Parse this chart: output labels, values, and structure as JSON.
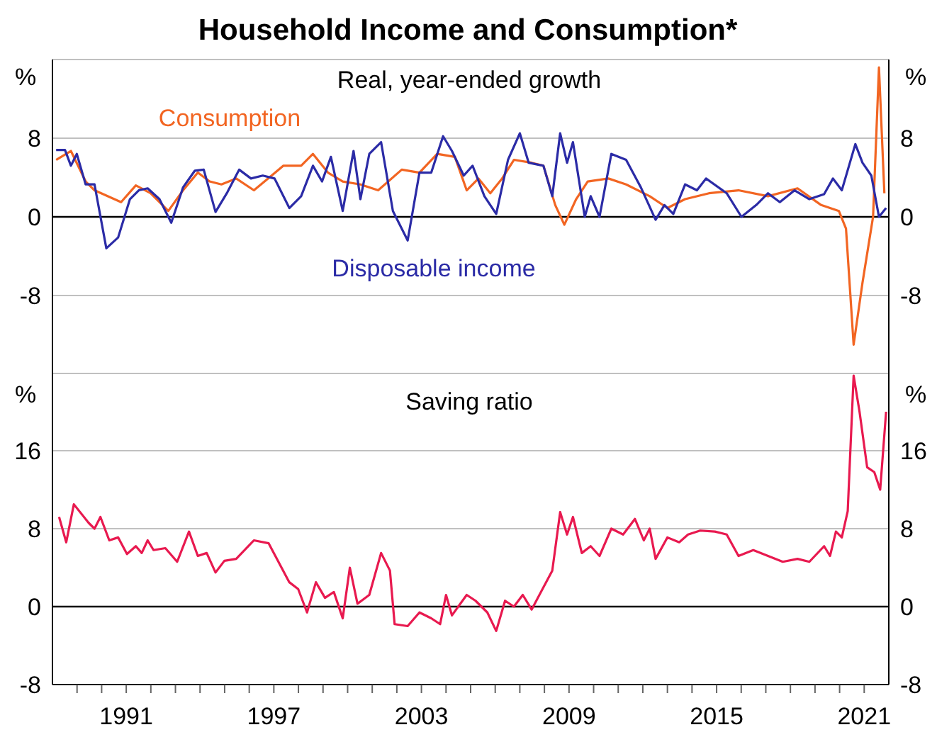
{
  "chart_data": [
    {
      "type": "line",
      "title": "Household Income and Consumption*",
      "subtitle": "Real, year-ended growth",
      "ylabel": "%",
      "y2label": "%",
      "xlim": [
        1988,
        2022
      ],
      "ylim": [
        -16,
        16
      ],
      "yticks": [
        -8,
        0,
        8
      ],
      "y2lim": [
        -16,
        16
      ],
      "y2ticks": [
        -8,
        0,
        8
      ],
      "tick_labels": "y",
      "grid": "y",
      "legend": false,
      "ref_lines": [
        {
          "axis": "y",
          "value": 0,
          "color": "#000000"
        }
      ],
      "series": [
        {
          "name": "Consumption",
          "color": "#f26522",
          "x": [
            1988.15,
            1988.75,
            1989.35,
            1989.71,
            1990.79,
            1991.39,
            1991.99,
            1992.71,
            1993.31,
            1993.91,
            1994.39,
            1994.87,
            1995.47,
            1996.19,
            1996.91,
            1997.39,
            1998.11,
            1998.59,
            1999.2,
            1999.8,
            2000.52,
            2001.24,
            2002.2,
            2002.92,
            2003.64,
            2004.36,
            2004.84,
            2005.32,
            2005.8,
            2006.28,
            2006.76,
            2007.48,
            2007.96,
            2008.44,
            2008.81,
            2009.29,
            2009.76,
            2010.6,
            2011.32,
            2012.28,
            2013.0,
            2013.72,
            2014.69,
            2015.89,
            2017.09,
            2018.29,
            2019.25,
            2019.97,
            2020.26,
            2020.57,
            2020.93,
            2021.36,
            2021.6,
            2021.82
          ],
          "values": [
            5.8,
            6.7,
            3.6,
            2.7,
            1.5,
            3.2,
            2.4,
            0.6,
            2.7,
            4.5,
            3.6,
            3.3,
            3.9,
            2.7,
            4.2,
            5.2,
            5.2,
            6.4,
            4.5,
            3.6,
            3.3,
            2.7,
            4.8,
            4.5,
            6.4,
            6.1,
            2.7,
            3.9,
            2.4,
            3.9,
            5.8,
            5.5,
            5.2,
            1.2,
            -0.8,
            1.8,
            3.6,
            3.9,
            3.3,
            2.1,
            0.9,
            1.8,
            2.4,
            2.7,
            2.1,
            2.9,
            1.2,
            0.6,
            -1.2,
            -13.0,
            -6.7,
            0,
            15.2,
            2.4
          ]
        },
        {
          "name": "Disposable income",
          "color": "#2b2ba6",
          "x": [
            1988.15,
            1988.51,
            1988.75,
            1988.99,
            1989.35,
            1989.71,
            1990.19,
            1990.67,
            1991.15,
            1991.51,
            1991.87,
            1992.35,
            1992.83,
            1993.31,
            1993.79,
            1994.15,
            1994.63,
            1995.11,
            1995.59,
            1996.07,
            1996.55,
            1997.03,
            1997.63,
            1998.11,
            1998.59,
            1998.96,
            1999.32,
            1999.8,
            2000.24,
            2000.52,
            2000.88,
            2001.36,
            2001.84,
            2002.44,
            2002.92,
            2003.4,
            2003.88,
            2004.24,
            2004.72,
            2005.08,
            2005.56,
            2006.04,
            2006.52,
            2007.0,
            2007.36,
            2007.96,
            2008.32,
            2008.64,
            2008.92,
            2009.16,
            2009.64,
            2009.88,
            2010.24,
            2010.72,
            2011.32,
            2011.92,
            2012.52,
            2012.88,
            2013.24,
            2013.72,
            2014.2,
            2014.57,
            2015.41,
            2016.01,
            2016.61,
            2017.09,
            2017.57,
            2018.17,
            2018.77,
            2019.37,
            2019.73,
            2020.09,
            2020.64,
            2020.93,
            2021.29,
            2021.6,
            2021.89
          ],
          "values": [
            6.8,
            6.8,
            5.2,
            6.4,
            3.3,
            3.3,
            -3.2,
            -2.1,
            1.8,
            2.7,
            2.9,
            1.8,
            -0.6,
            3.0,
            4.7,
            4.8,
            0.5,
            2.5,
            4.8,
            3.9,
            4.2,
            3.9,
            0.9,
            2.1,
            5.2,
            3.6,
            6.1,
            0.6,
            6.7,
            1.8,
            6.4,
            7.6,
            0.6,
            -2.4,
            4.5,
            4.5,
            8.2,
            6.7,
            4.2,
            5.2,
            2.1,
            0.3,
            5.8,
            8.5,
            5.5,
            5.2,
            2.1,
            8.5,
            5.5,
            7.6,
            0,
            2.1,
            0,
            6.4,
            5.8,
            3.0,
            -0.3,
            1.2,
            0.3,
            3.3,
            2.7,
            3.9,
            2.4,
            0,
            1.2,
            2.4,
            1.5,
            2.7,
            1.8,
            2.3,
            3.9,
            2.7,
            7.4,
            5.5,
            4.2,
            0,
            0.9
          ]
        }
      ]
    },
    {
      "type": "line",
      "title": "Saving ratio",
      "ylabel": "%",
      "y2label": "%",
      "xlim": [
        1988,
        2022
      ],
      "xticks": [
        {
          "value": 1989,
          "label": null
        },
        {
          "value": 1990,
          "label": null
        },
        1991,
        {
          "value": 1992,
          "label": null
        },
        {
          "value": 1993,
          "label": null
        },
        {
          "value": 1994,
          "label": null
        },
        {
          "value": 1995,
          "label": null
        },
        {
          "value": 1996,
          "label": null
        },
        1997,
        {
          "value": 1998,
          "label": null
        },
        {
          "value": 1999,
          "label": null
        },
        {
          "value": 2000,
          "label": null
        },
        {
          "value": 2001,
          "label": null
        },
        {
          "value": 2002,
          "label": null
        },
        2003,
        {
          "value": 2004,
          "label": null
        },
        {
          "value": 2005,
          "label": null
        },
        {
          "value": 2006,
          "label": null
        },
        {
          "value": 2007,
          "label": null
        },
        {
          "value": 2008,
          "label": null
        },
        2009,
        {
          "value": 2010,
          "label": null
        },
        {
          "value": 2011,
          "label": null
        },
        {
          "value": 2012,
          "label": null
        },
        {
          "value": 2013,
          "label": null
        },
        {
          "value": 2014,
          "label": null
        },
        2015,
        {
          "value": 2016,
          "label": null
        },
        {
          "value": 2017,
          "label": null
        },
        {
          "value": 2018,
          "label": null
        },
        {
          "value": 2019,
          "label": null
        },
        {
          "value": 2020,
          "label": null
        },
        2021
      ],
      "ylim": [
        -8,
        24
      ],
      "yticks": [
        -8,
        0,
        8,
        16
      ],
      "y2lim": [
        -8,
        24
      ],
      "y2ticks": [
        -8,
        0,
        8,
        16
      ],
      "grid": "y",
      "legend": false,
      "ref_lines": [
        {
          "axis": "y",
          "value": 0,
          "color": "#000000"
        }
      ],
      "series": [
        {
          "color": "#e8194f",
          "x": [
            1988.27,
            1988.56,
            1988.87,
            1989.47,
            1989.71,
            1989.95,
            1990.31,
            1990.67,
            1991.03,
            1991.39,
            1991.63,
            1991.87,
            1992.11,
            1992.59,
            1993.07,
            1993.55,
            1993.91,
            1994.27,
            1994.63,
            1994.99,
            1995.47,
            1996.19,
            1996.79,
            1997.63,
            1997.99,
            1998.35,
            1998.71,
            1999.08,
            1999.44,
            1999.8,
            2000.09,
            2000.4,
            2000.88,
            2001.36,
            2001.72,
            2001.91,
            2002.44,
            2002.92,
            2003.4,
            2003.76,
            2004.0,
            2004.24,
            2004.84,
            2005.2,
            2005.68,
            2006.04,
            2006.4,
            2006.76,
            2007.12,
            2007.48,
            2008.32,
            2008.64,
            2008.92,
            2009.16,
            2009.52,
            2009.88,
            2010.24,
            2010.72,
            2011.2,
            2011.68,
            2012.04,
            2012.28,
            2012.52,
            2013.0,
            2013.48,
            2013.84,
            2014.33,
            2014.93,
            2015.41,
            2015.89,
            2016.49,
            2017.09,
            2017.69,
            2018.29,
            2018.77,
            2019.37,
            2019.61,
            2019.85,
            2020.09,
            2020.33,
            2020.57,
            2020.81,
            2021.12,
            2021.41,
            2021.65,
            2021.89
          ],
          "values": [
            9.2,
            6.6,
            10.5,
            8.6,
            8.0,
            9.2,
            6.8,
            7.1,
            5.4,
            6.2,
            5.5,
            6.8,
            5.8,
            6.0,
            4.6,
            7.7,
            5.2,
            5.5,
            3.5,
            4.7,
            4.9,
            6.8,
            6.5,
            2.5,
            1.8,
            -0.6,
            2.5,
            0.9,
            1.5,
            -1.2,
            4.0,
            0.3,
            1.2,
            5.5,
            3.7,
            -1.8,
            -2.0,
            -0.6,
            -1.2,
            -1.8,
            1.2,
            -0.9,
            1.2,
            0.6,
            -0.6,
            -2.5,
            0.6,
            0,
            1.2,
            -0.3,
            3.7,
            9.7,
            7.4,
            9.2,
            5.5,
            6.2,
            5.2,
            8.0,
            7.4,
            9.0,
            6.8,
            8.0,
            4.9,
            7.1,
            6.6,
            7.4,
            7.8,
            7.7,
            7.4,
            5.2,
            5.8,
            5.2,
            4.6,
            4.9,
            4.6,
            6.2,
            5.2,
            7.7,
            7.1,
            9.8,
            23.7,
            20.0,
            14.3,
            13.8,
            12.0,
            20.0
          ]
        }
      ]
    }
  ]
}
